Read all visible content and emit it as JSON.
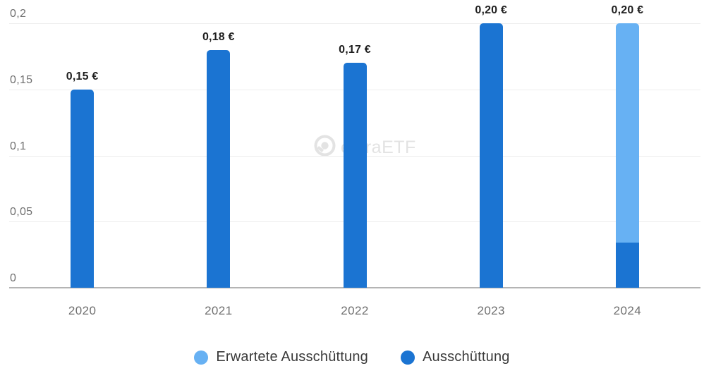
{
  "chart": {
    "watermark": {
      "text": "extraETF"
    },
    "legend": [
      {
        "label": "Erwartete Ausschüttung",
        "color": "#67b1f3",
        "series": "Erwartete Ausschüttung"
      },
      {
        "label": "Ausschüttung",
        "color": "#1b74d2",
        "series": "Ausschüttung"
      }
    ]
  },
  "chart_data": {
    "type": "bar",
    "stacked": true,
    "title": "",
    "xlabel": "",
    "ylabel": "",
    "categories": [
      "2020",
      "2021",
      "2022",
      "2023",
      "2024"
    ],
    "series": [
      {
        "name": "Ausschüttung",
        "color": "#1b74d2",
        "values": [
          0.15,
          0.18,
          0.17,
          0.2,
          0.034
        ]
      },
      {
        "name": "Erwartete Ausschüttung",
        "color": "#67b1f3",
        "values": [
          0,
          0,
          0,
          0,
          0.166
        ]
      }
    ],
    "bar_total_labels": [
      "0,15 €",
      "0,18 €",
      "0,17 €",
      "0,20 €",
      "0,20 €"
    ],
    "ylim": [
      0,
      0.2
    ],
    "yticks": [
      {
        "value": 0,
        "label": "0"
      },
      {
        "value": 0.05,
        "label": "0,05"
      },
      {
        "value": 0.1,
        "label": "0,1"
      },
      {
        "value": 0.15,
        "label": "0,15"
      },
      {
        "value": 0.2,
        "label": "0,2"
      }
    ],
    "grid": true,
    "legend_position": "bottom",
    "colors": {
      "gridline": "#ededed",
      "zero_axis": "#b4b4b4",
      "tick_text": "#6f6f6f",
      "bar_label_text": "#1f1f1f",
      "legend_text": "#3a3a3a",
      "watermark": "#e3e3e3",
      "background": "#ffffff"
    }
  }
}
